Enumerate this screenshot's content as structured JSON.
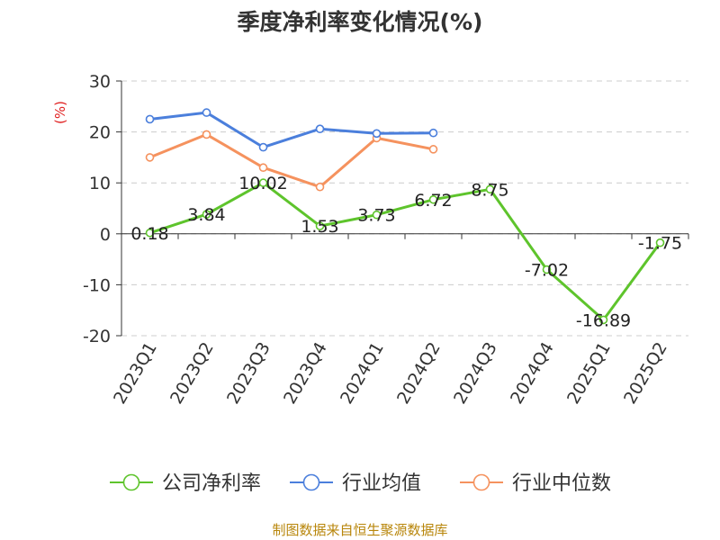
{
  "title": "季度净利率变化情况(%)",
  "source": "制图数据来自恒生聚源数据库",
  "chart_data": {
    "type": "line",
    "title": "季度净利率变化情况(%)",
    "ylabel": "(%)",
    "xlabel": "",
    "ylim": [
      -20,
      30
    ],
    "yticks": [
      30,
      20,
      10,
      0,
      -10,
      -20
    ],
    "grid": true,
    "legend_position": "bottom",
    "categories": [
      "2023Q1",
      "2023Q2",
      "2023Q3",
      "2023Q4",
      "2024Q1",
      "2024Q2",
      "2024Q3",
      "2024Q4",
      "2025Q1",
      "2025Q2"
    ],
    "series": [
      {
        "name": "公司净利率",
        "color": "#5ec42c",
        "values": [
          0.18,
          3.84,
          10.02,
          1.53,
          3.73,
          6.72,
          8.75,
          -7.02,
          -16.89,
          -1.75
        ],
        "labels": [
          "0.18",
          "3.84",
          "10.02",
          "1.53",
          "3.73",
          "6.72",
          "8.75",
          "-7.02",
          "-16.89",
          "-1.75"
        ]
      },
      {
        "name": "行业均值",
        "color": "#4b7fdc",
        "values": [
          22.5,
          23.8,
          17.0,
          20.6,
          19.7,
          19.8,
          null,
          null,
          null,
          null
        ]
      },
      {
        "name": "行业中位数",
        "color": "#f5925e",
        "values": [
          15.0,
          19.5,
          13.0,
          9.2,
          18.8,
          16.6,
          null,
          null,
          null,
          null
        ]
      }
    ]
  }
}
